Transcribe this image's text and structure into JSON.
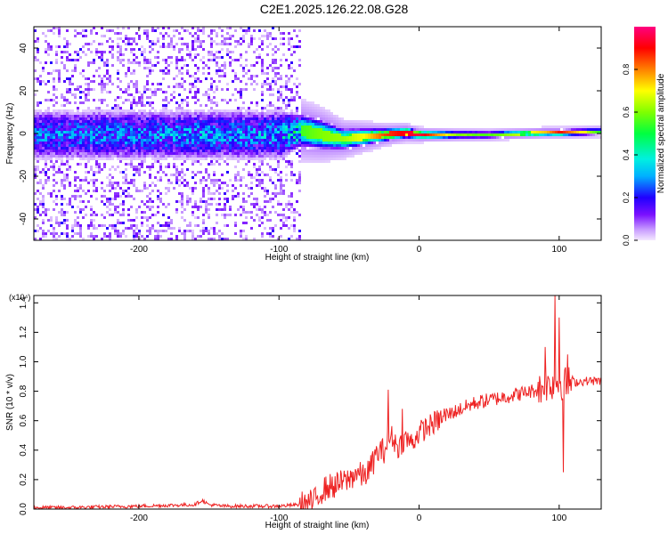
{
  "title": "C2E1.2025.126.22.08.G28",
  "chart_data": [
    {
      "type": "heatmap",
      "xlabel": "Height of straight line (km)",
      "ylabel": "Frequency (Hz)",
      "xlim": [
        -275,
        130
      ],
      "ylim": [
        -50,
        50
      ],
      "xticks": [
        -200,
        -100,
        0,
        100
      ],
      "xtick_labels": [
        "-200",
        "-100",
        "0",
        "100"
      ],
      "yticks": [
        -40,
        -20,
        0,
        20,
        40
      ],
      "ytick_labels": [
        "-40",
        "-20",
        "0",
        "20",
        "40"
      ],
      "colorbar": {
        "label": "Normalized spectral amplitude",
        "range": [
          0,
          1
        ],
        "ticks": [
          0.0,
          0.2,
          0.4,
          0.6,
          0.8
        ],
        "tick_labels": [
          "0.0",
          "0.2",
          "0.4",
          "0.6",
          "0.8"
        ]
      },
      "band_profile": {
        "x": [
          -275,
          -200,
          -100,
          -85,
          -70,
          -55,
          -40,
          -25,
          -10,
          0,
          25,
          50,
          90,
          100,
          130
        ],
        "center_hz": [
          0,
          0,
          0,
          2,
          0,
          -2,
          -1,
          0,
          1,
          0,
          0,
          0,
          1,
          1,
          1.5
        ],
        "half_width_hz": [
          12,
          12,
          12,
          8,
          7,
          5,
          4,
          3,
          2.5,
          2,
          1.6,
          1.5,
          1.5,
          1.5,
          1.5
        ],
        "peak_amplitude": [
          0.3,
          0.32,
          0.35,
          0.55,
          0.6,
          0.62,
          0.7,
          0.85,
          0.92,
          0.95,
          0.6,
          0.55,
          0.75,
          0.9,
          0.5
        ]
      }
    },
    {
      "type": "line",
      "xlabel": "Height of straight line (km)",
      "ylabel": "SNR (10 * v/v)",
      "yscale_label": "(x10⁴)",
      "xlim": [
        -275,
        130
      ],
      "ylim": [
        0,
        1.45
      ],
      "xticks": [
        -200,
        -100,
        0,
        100
      ],
      "xtick_labels": [
        "-200",
        "-100",
        "0",
        "100"
      ],
      "yticks": [
        0.0,
        0.2,
        0.4,
        0.6,
        0.8,
        1.0,
        1.2,
        1.4
      ],
      "ytick_labels": [
        "0.0",
        "0.2",
        "0.4",
        "0.6",
        "0.8",
        "1.0",
        "1.2",
        "1.4"
      ],
      "series": [
        {
          "color": "#ee2222",
          "x": [
            -275,
            -250,
            -200,
            -160,
            -155,
            -150,
            -140,
            -100,
            -85,
            -75,
            -70,
            -65,
            -60,
            -55,
            -50,
            -45,
            -40,
            -35,
            -30,
            -25,
            -20,
            -15,
            -10,
            -5,
            0,
            10,
            20,
            30,
            40,
            50,
            60,
            70,
            80,
            88,
            92,
            96,
            100,
            104,
            110,
            120,
            130
          ],
          "y": [
            0.01,
            0.01,
            0.02,
            0.03,
            0.06,
            0.03,
            0.02,
            0.02,
            0.03,
            0.05,
            0.12,
            0.15,
            0.16,
            0.18,
            0.2,
            0.25,
            0.22,
            0.27,
            0.38,
            0.4,
            0.5,
            0.42,
            0.48,
            0.45,
            0.52,
            0.58,
            0.64,
            0.68,
            0.72,
            0.74,
            0.76,
            0.78,
            0.8,
            0.82,
            0.84,
            0.86,
            0.86,
            0.85,
            0.86,
            0.87,
            0.87
          ]
        }
      ],
      "annotations": [
        {
          "x": -20,
          "y": 0.82,
          "text": ""
        }
      ],
      "spikes": [
        {
          "x": -22,
          "y": 0.81
        },
        {
          "x": -12,
          "y": 0.68
        },
        {
          "x": 90,
          "y": 1.1
        },
        {
          "x": 97,
          "y": 1.45
        },
        {
          "x": 100,
          "y": 1.3
        },
        {
          "x": 103,
          "y": 0.25
        },
        {
          "x": 106,
          "y": 1.05
        }
      ]
    }
  ]
}
